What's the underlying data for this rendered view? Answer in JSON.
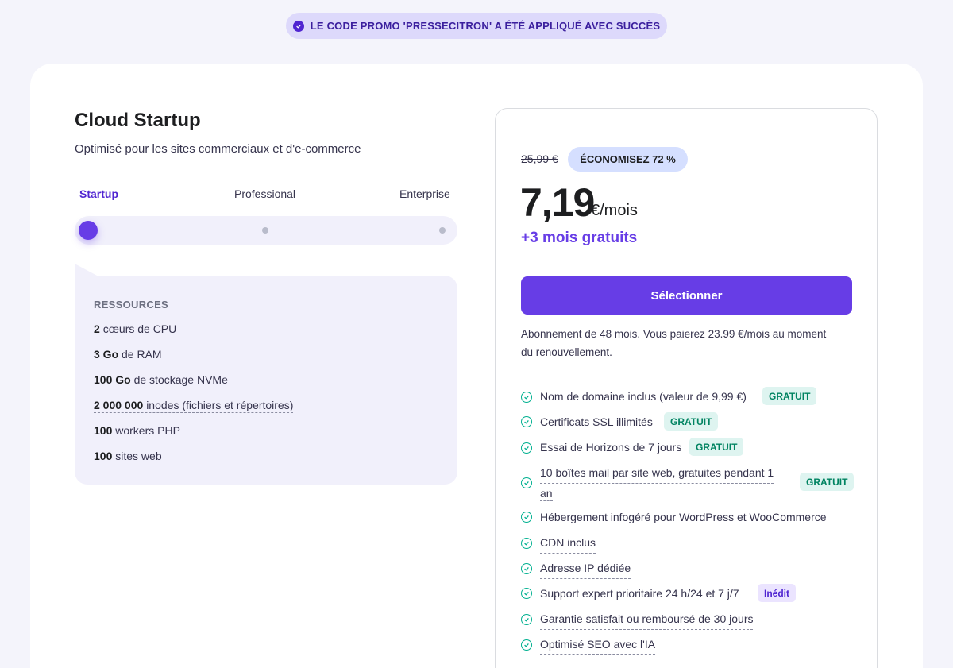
{
  "promo": {
    "text": "LE CODE PROMO 'PRESSECITRON' A ÉTÉ APPLIQUÉ AVEC SUCCÈS"
  },
  "plan": {
    "title": "Cloud Startup",
    "subtitle": "Optimisé pour les sites commerciaux et d'e-commerce",
    "tiers": [
      "Startup",
      "Professional",
      "Enterprise"
    ],
    "selected_tier": "Startup"
  },
  "resources": {
    "title": "RESSOURCES",
    "items": [
      {
        "value": "2",
        "label": "cœurs de CPU"
      },
      {
        "value": "3 Go",
        "label": "de RAM"
      },
      {
        "value": "100 Go",
        "label": "de stockage NVMe"
      },
      {
        "value": "2 000 000",
        "label": "inodes (fichiers et répertoires)"
      },
      {
        "value": "100",
        "label": "workers PHP"
      },
      {
        "value": "100",
        "label": "sites web"
      }
    ]
  },
  "pricing": {
    "old_price": "25,99 €",
    "savings": "ÉCONOMISEZ 72 %",
    "price": "7,19",
    "unit": "€/mois",
    "bonus": "+3 mois gratuits",
    "select_label": "Sélectionner",
    "renewal": "Abonnement de 48 mois. Vous paierez 23.99 €/mois au moment du renouvellement."
  },
  "features": [
    {
      "label": "Nom de domaine inclus (valeur de 9,99 €)",
      "tag": "GRATUIT"
    },
    {
      "label": "Certificats SSL illimités",
      "tag": "GRATUIT"
    },
    {
      "label": "Essai de Horizons de 7 jours",
      "tag": "GRATUIT"
    },
    {
      "label_line1": "10 boîtes mail par site web, gratuites pendant 1",
      "label_line2": "an",
      "tag": "GRATUIT"
    },
    {
      "label": "Hébergement infogéré pour WordPress et WooCommerce"
    },
    {
      "label": "CDN inclus"
    },
    {
      "label": "Adresse IP dédiée"
    },
    {
      "label": "Support expert prioritaire 24 h/24 et 7 j/7",
      "tag": "Inédit"
    },
    {
      "label": "Garantie satisfait ou remboursé de 30 jours"
    },
    {
      "label": "Optimisé SEO avec l'IA"
    }
  ],
  "colors": {
    "accent": "#673de6",
    "promo_bg": "#ddd9fb",
    "free_tag_bg": "#def4f0",
    "free_tag_text": "#008361",
    "check": "#00b090"
  }
}
